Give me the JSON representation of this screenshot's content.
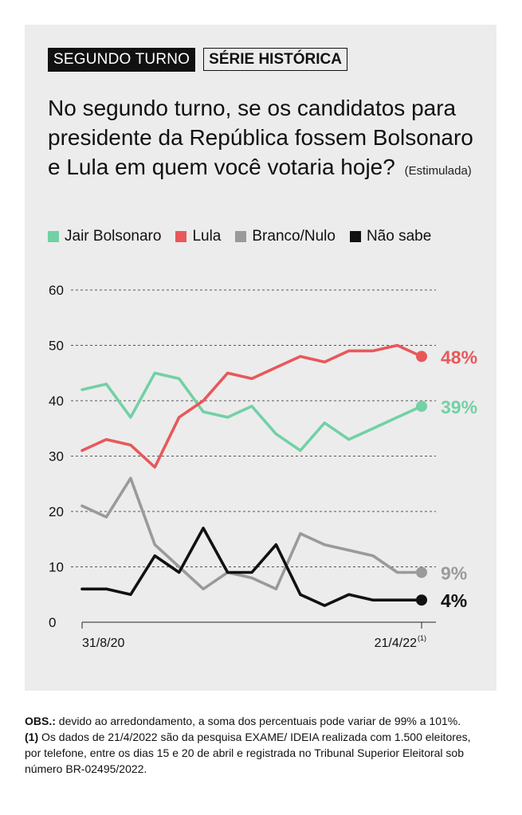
{
  "tags": {
    "primary": "SEGUNDO TURNO",
    "secondary": "SÉRIE HISTÓRICA"
  },
  "question": {
    "text": "No segundo turno, se os candidatos para presidente da República fossem Bolsonaro e Lula em quem você votaria hoje?",
    "note": "(Estimulada)"
  },
  "footnote": {
    "label": "OBS.:",
    "text1": " devido ao arredondamento, a soma dos percentuais pode variar de 99% a 101%. ",
    "marker": "(1)",
    "text2": " Os dados de 21/4/2022 são da pesquisa EXAME/ IDEIA realizada com 1.500 eleitores, por telefone, entre os dias 15 e 20 de abril e registrada no Tribunal Superior Eleitoral sob número BR-02495/2022."
  },
  "chart_data": {
    "type": "line",
    "title": "No segundo turno, se os candidatos para presidente da República fossem Bolsonaro e Lula em quem você votaria hoje?",
    "xlabel": "",
    "ylabel": "",
    "ylim": [
      0,
      60
    ],
    "yticks": [
      0,
      10,
      20,
      30,
      40,
      50,
      60
    ],
    "x_tick_labels": {
      "first": "31/8/20",
      "last": "21/4/22",
      "last_marker": "(1)"
    },
    "grid": true,
    "legend_position": "top-left",
    "series": [
      {
        "name": "Jair Bolsonaro",
        "color": "#72d1a5",
        "values": [
          42,
          43,
          37,
          45,
          44,
          38,
          37,
          39,
          34,
          31,
          36,
          33,
          35,
          37,
          39
        ],
        "end_label": "39%"
      },
      {
        "name": "Lula",
        "color": "#e8585a",
        "values": [
          31,
          33,
          32,
          28,
          37,
          40,
          45,
          44,
          46,
          48,
          47,
          49,
          49,
          50,
          48
        ],
        "end_label": "48%"
      },
      {
        "name": "Branco/Nulo",
        "color": "#9a9a9a",
        "values": [
          21,
          19,
          26,
          14,
          10,
          6,
          9,
          8,
          6,
          16,
          14,
          13,
          12,
          9,
          9
        ],
        "end_label": "9%"
      },
      {
        "name": "Não sabe",
        "color": "#111111",
        "values": [
          6,
          6,
          5,
          12,
          9,
          17,
          9,
          9,
          14,
          5,
          3,
          5,
          4,
          4,
          4
        ],
        "end_label": "4%"
      }
    ]
  }
}
